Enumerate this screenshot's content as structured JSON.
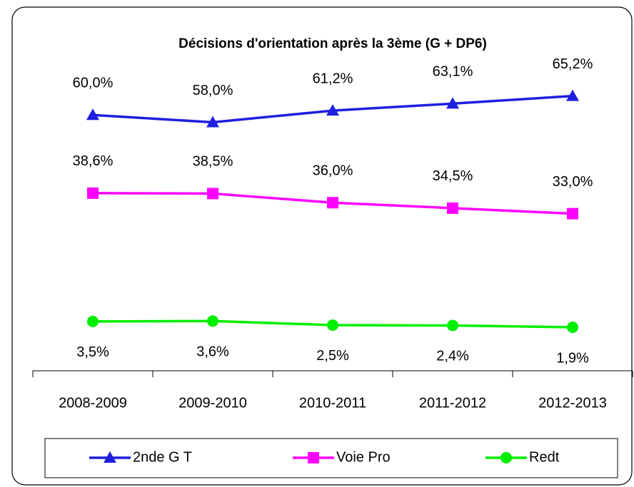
{
  "chart_data": {
    "type": "line",
    "title": "Décisions d'orientation après la 3ème (G + DP6)",
    "categories": [
      "2008-2009",
      "2009-2010",
      "2010-2011",
      "2011-2012",
      "2012-2013"
    ],
    "ylim": [
      -10,
      70
    ],
    "legend": "bottom",
    "series": [
      {
        "name": "2nde G T",
        "color": "#1f1fe0",
        "marker": "triangle",
        "values": [
          60.0,
          58.0,
          61.2,
          63.1,
          65.2
        ],
        "value_labels": [
          "60,0%",
          "58,0%",
          "61,2%",
          "63,1%",
          "65,2%"
        ]
      },
      {
        "name": "Voie Pro",
        "color": "#ff00ff",
        "marker": "square",
        "values": [
          38.6,
          38.5,
          36.0,
          34.5,
          33.0
        ],
        "value_labels": [
          "38,6%",
          "38,5%",
          "36,0%",
          "34,5%",
          "33,0%"
        ]
      },
      {
        "name": "Redt",
        "color": "#00ee00",
        "marker": "circle",
        "values": [
          3.5,
          3.6,
          2.5,
          2.4,
          1.9
        ],
        "value_labels": [
          "3,5%",
          "3,6%",
          "2,5%",
          "2,4%",
          "1,9%"
        ]
      }
    ]
  }
}
